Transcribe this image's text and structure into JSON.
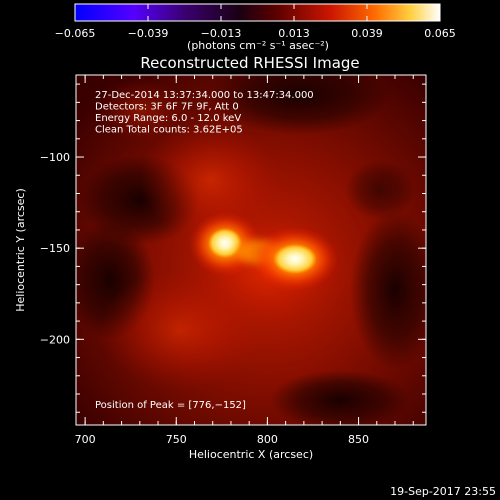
{
  "colorbar": {
    "ticks": [
      {
        "value": -0.065,
        "label": "−0.065"
      },
      {
        "value": -0.039,
        "label": "−0.039"
      },
      {
        "value": -0.013,
        "label": "−0.013"
      },
      {
        "value": 0.013,
        "label": "0.013"
      },
      {
        "value": 0.039,
        "label": "0.039"
      },
      {
        "value": 0.065,
        "label": "0.065"
      }
    ],
    "range": [
      -0.065,
      0.065
    ],
    "units": "(photons cm⁻² s⁻¹ asec⁻²)"
  },
  "title": "Reconstructed RHESSI Image",
  "plot": {
    "x_label": "Heliocentric X (arcsec)",
    "y_label": "Heliocentric Y (arcsec)",
    "x_ticks": [
      {
        "value": 700,
        "label": "700"
      },
      {
        "value": 750,
        "label": "750"
      },
      {
        "value": 800,
        "label": "800"
      },
      {
        "value": 850,
        "label": "850"
      }
    ],
    "y_ticks": [
      {
        "value": -100,
        "label": "−100"
      },
      {
        "value": -150,
        "label": "−150"
      },
      {
        "value": -200,
        "label": "−200"
      }
    ],
    "x_range": [
      695,
      887
    ],
    "y_range": [
      -247,
      -55
    ],
    "info_lines": [
      "27-Dec-2014 13:37:34.000 to 13:47:34.000",
      "Detectors: 3F 6F 7F 9F, Att 0",
      "Energy Range: 6.0 - 12.0 keV",
      "Clean    Total counts: 3.62E+05"
    ],
    "peak_text": "Position of Peak = [776,−152]"
  },
  "footer": {
    "timestamp": "19-Sep-2017 23:55"
  },
  "colors": {
    "background": "#000000",
    "colormap": [
      "#0000ff",
      "#9900ff",
      "#2b0046",
      "#000000",
      "#6b0000",
      "#b20000",
      "#ff3300",
      "#ffb000",
      "#fff0a0",
      "#ffffff"
    ]
  }
}
